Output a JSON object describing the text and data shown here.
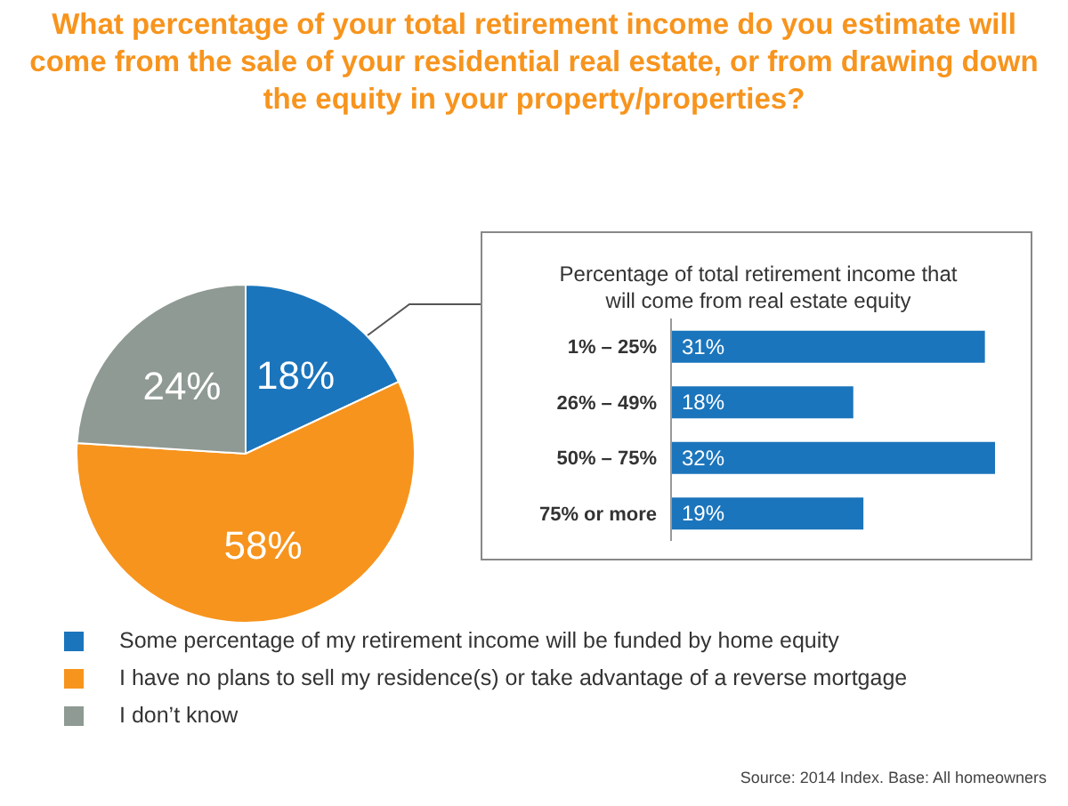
{
  "chart_data": [
    {
      "type": "pie",
      "title": "What percentage of your total retirement income do you estimate will come from the sale of your residential real estate, or from drawing down the equity in your property/properties?",
      "categories": [
        "Some percentage of my retirement income will be funded by home equity",
        "I have no plans to sell my residence(s) or take advantage of a reverse mortgage",
        "I don’t know"
      ],
      "values": [
        18,
        58,
        24
      ],
      "colors": [
        "#1b75bc",
        "#f7941d",
        "#8e9a93"
      ],
      "value_labels": [
        "18%",
        "58%",
        "24%"
      ],
      "legend": "bottom",
      "annotations": [
        "Source: 2014 Index. Base: All homeowners"
      ]
    },
    {
      "type": "bar",
      "orientation": "horizontal",
      "title": "Percentage of total retirement income that will come from real estate equity",
      "categories": [
        "1% – 25%",
        "26% – 49%",
        "50% – 75%",
        "75% or more"
      ],
      "values": [
        31,
        18,
        32,
        19
      ],
      "color": "#1b75bc",
      "value_labels": [
        "31%",
        "18%",
        "32%",
        "19%"
      ]
    }
  ]
}
